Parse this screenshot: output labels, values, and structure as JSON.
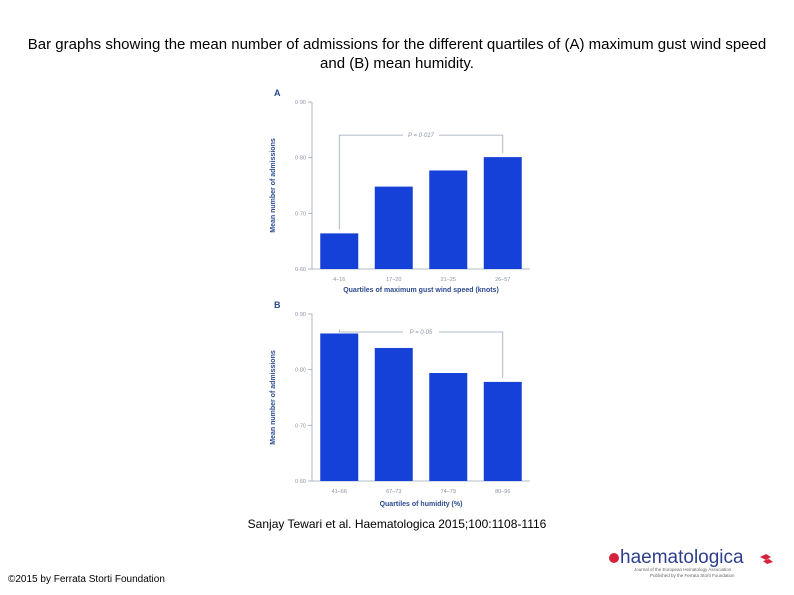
{
  "title": "Bar graphs showing the mean number of admissions for the different quartiles of (A) maximum gust wind speed and (B) mean humidity.",
  "citation": "Sanjay Tewari et al. Haematologica 2015;100:1108-1116",
  "copyright": "©2015 by Ferrata Storti Foundation",
  "logo": {
    "wordmark": "haematologica",
    "tagline1": "Journal of the European Hematology Association",
    "tagline2": "Published by the Ferrata Storti Foundation"
  },
  "colors": {
    "bar": "#1641d8",
    "axis": "#9aa6b8",
    "text_gray": "#8a93a3",
    "text_blue": "#2b4a8f"
  },
  "chart_data": [
    {
      "type": "bar",
      "panel_label": "A",
      "categories": [
        "4–16",
        "17–20",
        "21–25",
        "26–57"
      ],
      "values": [
        0.664,
        0.748,
        0.777,
        0.801
      ],
      "ylim": [
        0.6,
        0.9
      ],
      "yticks": [
        "0·90",
        "0·80",
        "0·70",
        "0·60"
      ],
      "ytick_values": [
        0.9,
        0.8,
        0.7,
        0.6
      ],
      "xlabel": "Quartiles of maximum gust wind speed (knots)",
      "ylabel": "Mean number of admissions",
      "annotation": "P = 0·017",
      "bracket_from": 0,
      "bracket_to": 3
    },
    {
      "type": "bar",
      "panel_label": "B",
      "categories": [
        "41–66",
        "67–73",
        "74–79",
        "80–96"
      ],
      "values": [
        0.865,
        0.839,
        0.794,
        0.778
      ],
      "ylim": [
        0.6,
        0.9
      ],
      "yticks": [
        "0·90",
        "0·80",
        "0·70",
        "0·60"
      ],
      "ytick_values": [
        0.9,
        0.8,
        0.7,
        0.6
      ],
      "xlabel": "Quartiles of humidity (%)",
      "ylabel": "Mean number of admissions",
      "annotation": "P = 0·05",
      "bracket_from": 0,
      "bracket_to": 3
    }
  ]
}
